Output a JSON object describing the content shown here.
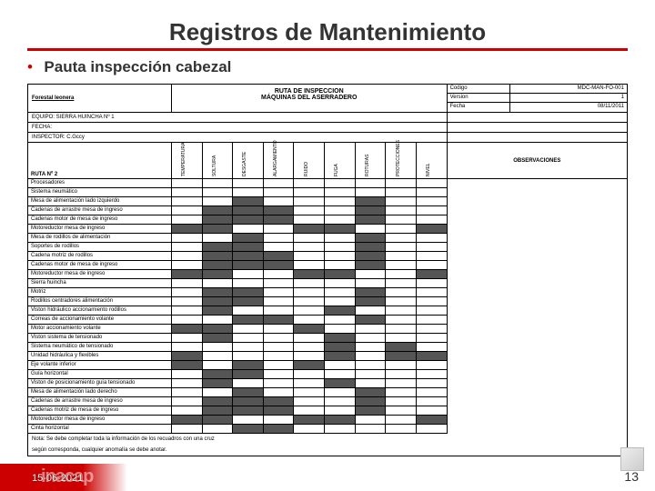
{
  "title": "Registros de Mantenimiento",
  "subtitle": "Pauta inspección cabezal",
  "company": "Forestal leonera",
  "form_title": "RUTA DE INSPECCION\nMÁQUINAS DEL ASERRADERO",
  "codigo_label": "Codigo",
  "codigo_val": "MDC-MAN-FO-001",
  "version_label": "Version",
  "version_val": "1",
  "fecha_label": "Fecha",
  "fecha_val": "08/11/2011",
  "equipo": "EQUIPO: SIERRA HUINCHA Nº 1",
  "fecha_field": "FECHA:",
  "inspector": "INSPECTOR: C.Gccy",
  "ruta_label": "RUTA Nº 2",
  "obs_label": "OBSERVACIONES",
  "check_cols": [
    "TEMPERATURA",
    "SOLTURA",
    "DESGASTE",
    "ALARGAMIENTO",
    "RUIDO",
    "FUGA",
    "ROTURAS",
    "PROTECCIONES",
    "NIVEL"
  ],
  "rows": [
    {
      "n": "Procesadores",
      "c": [
        0,
        0,
        0,
        0,
        0,
        0,
        0,
        0,
        0
      ]
    },
    {
      "n": "Sistema neumático",
      "c": [
        0,
        0,
        0,
        0,
        0,
        0,
        0,
        0,
        0
      ]
    },
    {
      "n": "Mesa de alimentación lado izquierdo",
      "c": [
        0,
        0,
        1,
        0,
        0,
        0,
        1,
        0,
        0
      ]
    },
    {
      "n": "Cadenas de arrastre mesa de ingreso",
      "c": [
        0,
        1,
        1,
        1,
        0,
        0,
        1,
        0,
        0
      ]
    },
    {
      "n": "Cadenas motor de mesa de ingreso",
      "c": [
        0,
        1,
        1,
        1,
        0,
        0,
        1,
        0,
        0
      ]
    },
    {
      "n": "Motoreductor mesa de ingreso",
      "c": [
        1,
        1,
        0,
        0,
        1,
        1,
        0,
        0,
        1
      ]
    },
    {
      "n": "Mesa de rodillos de alimentación",
      "c": [
        0,
        0,
        1,
        0,
        0,
        0,
        1,
        0,
        0
      ]
    },
    {
      "n": "Soportes de rodillos",
      "c": [
        0,
        1,
        1,
        0,
        0,
        0,
        1,
        0,
        0
      ]
    },
    {
      "n": "Cadena motriz de rodillos",
      "c": [
        0,
        1,
        1,
        1,
        0,
        0,
        1,
        0,
        0
      ]
    },
    {
      "n": "Cadenas motor de mesa de ingreso",
      "c": [
        0,
        1,
        1,
        1,
        0,
        0,
        1,
        0,
        0
      ]
    },
    {
      "n": "Motoreductor mesa de ingreso",
      "c": [
        1,
        1,
        0,
        0,
        1,
        1,
        0,
        0,
        1
      ]
    },
    {
      "n": "Sierra huincha",
      "c": [
        0,
        0,
        0,
        0,
        0,
        0,
        0,
        0,
        0
      ]
    },
    {
      "n": "Motriz",
      "c": [
        0,
        1,
        1,
        0,
        0,
        0,
        1,
        0,
        0
      ]
    },
    {
      "n": "Rodillos centradores alimentación",
      "c": [
        0,
        1,
        1,
        0,
        0,
        0,
        1,
        0,
        0
      ]
    },
    {
      "n": "Viston hidráulico accionamiento rodillos",
      "c": [
        0,
        1,
        0,
        0,
        0,
        1,
        0,
        0,
        0
      ]
    },
    {
      "n": "Correas de accionamiento volante",
      "c": [
        0,
        0,
        1,
        1,
        0,
        0,
        1,
        0,
        0
      ]
    },
    {
      "n": "Motor accionamiento volante",
      "c": [
        1,
        1,
        0,
        0,
        1,
        0,
        0,
        0,
        0
      ]
    },
    {
      "n": "Viston sistema de tensionado",
      "c": [
        0,
        1,
        0,
        0,
        0,
        1,
        0,
        0,
        0
      ]
    },
    {
      "n": "Sistema neumático de tensionado",
      "c": [
        0,
        0,
        0,
        0,
        0,
        1,
        0,
        1,
        0
      ]
    },
    {
      "n": "Unidad hidráulica y flexibles",
      "c": [
        1,
        0,
        0,
        0,
        0,
        1,
        0,
        1,
        1
      ]
    },
    {
      "n": "Eje volante inferior",
      "c": [
        1,
        0,
        1,
        0,
        1,
        0,
        0,
        0,
        0
      ]
    },
    {
      "n": "Guía horizontal",
      "c": [
        0,
        1,
        1,
        0,
        0,
        0,
        0,
        0,
        0
      ]
    },
    {
      "n": "Viston de posicionamiento guía tensionado",
      "c": [
        0,
        1,
        0,
        0,
        0,
        1,
        0,
        0,
        0
      ]
    },
    {
      "n": "Mesa de alimentación lado derecho",
      "c": [
        0,
        0,
        1,
        0,
        0,
        0,
        1,
        0,
        0
      ]
    },
    {
      "n": "Cadenas de arrastre mesa de ingreso",
      "c": [
        0,
        1,
        1,
        1,
        0,
        0,
        1,
        0,
        0
      ]
    },
    {
      "n": "Cadenas motriz de mesa de ingreso",
      "c": [
        0,
        1,
        1,
        1,
        0,
        0,
        1,
        0,
        0
      ]
    },
    {
      "n": "Motoreductor mesa de ingreso",
      "c": [
        1,
        1,
        0,
        0,
        1,
        1,
        0,
        0,
        1
      ]
    },
    {
      "n": "Cinta horizontal",
      "c": [
        0,
        0,
        1,
        1,
        0,
        0,
        0,
        0,
        0
      ]
    }
  ],
  "note1": "Nota: Se debe completar toda la información de los recuadros con una cruz",
  "note2": "según corresponda, cualquier anomalía se debe anotar.",
  "date": "15-06-2021",
  "logo": "inacap",
  "pagenum": "13",
  "colors": {
    "accent": "#cc0000",
    "chk_on": "#555555"
  }
}
